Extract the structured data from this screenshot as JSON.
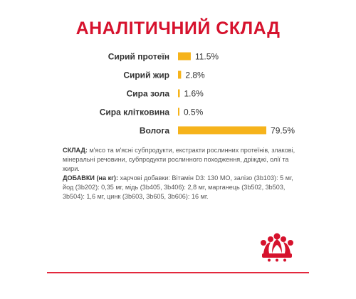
{
  "title": "АНАЛІТИЧНИЙ СКЛАД",
  "chart_data": {
    "type": "bar",
    "orientation": "horizontal",
    "categories": [
      "Сирий протеїн",
      "Сирий жир",
      "Сира зола",
      "Сира клітковина",
      "Волога"
    ],
    "values": [
      11.5,
      2.8,
      1.6,
      0.5,
      79.5
    ],
    "value_labels": [
      "11.5%",
      "2.8%",
      "1.6%",
      "0.5%",
      "79.5%"
    ],
    "xlim": [
      0,
      100
    ],
    "bar_color": "#f6b31b",
    "label_color": "#333333",
    "grid": false,
    "legend": "none"
  },
  "composition": {
    "sklad_label": "СКЛАД:",
    "sklad_text": " м'ясо та м'ясні субпродукти, екстракти рослинних протеїнів, злакові, мінеральні речовини, субпродукти рослинного походження, дріжджі, олії та жири.",
    "dobavky_label": "ДОБАВКИ (на кг):",
    "dobavky_text": " харчові добавки: Вітамін D3: 130 MO, залізо (3b103): 5 мг, йод (3b202): 0,35 мг, мідь (3b405, 3b406): 2,8 мг, марганець (3b502, 3b503, 3b504): 1,6 мг, цинк (3b603, 3b605, 3b606): 16 мг."
  },
  "colors": {
    "title": "#d6122d",
    "accent_line": "#e3283d",
    "logo": "#d6122d"
  },
  "icons": {
    "brand_logo": "crown-icon"
  }
}
